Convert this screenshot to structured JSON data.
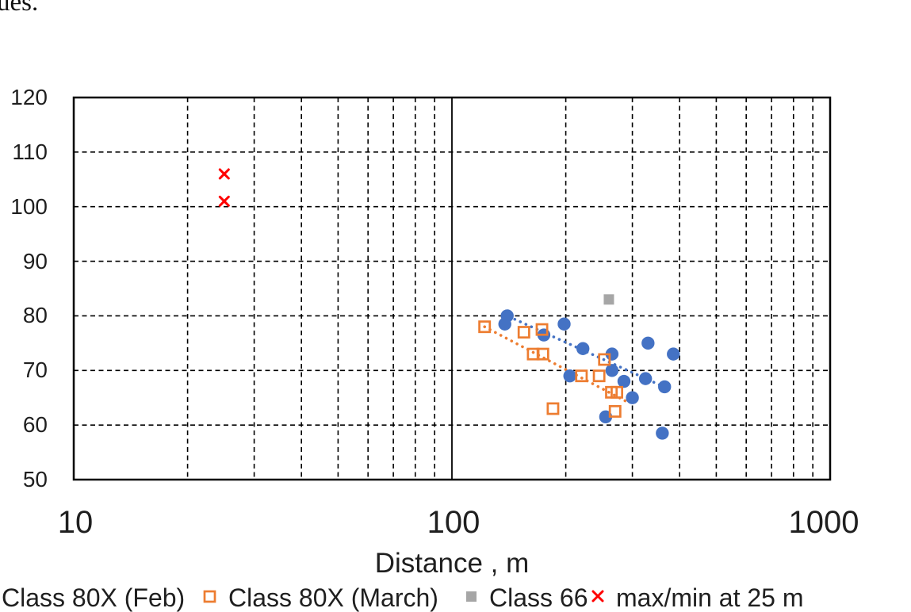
{
  "document_fragment": {
    "text": "ues."
  },
  "chart_data": {
    "type": "scatter",
    "title": "",
    "xlabel": "Distance , m",
    "ylabel": "",
    "x_scale": "log",
    "xlim": [
      10,
      1000
    ],
    "ylim": [
      50,
      120
    ],
    "x_ticks": [
      10,
      100,
      1000
    ],
    "y_ticks": [
      120,
      110,
      100,
      90,
      80,
      70,
      60,
      50
    ],
    "grid": "dashed",
    "legend_position": "bottom",
    "frame_color": "#000000",
    "series": [
      {
        "name": "Class 80X (Feb)",
        "marker": "filled-circle",
        "color": "#4472C4",
        "points": [
          [
            140,
            80
          ],
          [
            138,
            78.5
          ],
          [
            175,
            76.5
          ],
          [
            198,
            78.5
          ],
          [
            222,
            74
          ],
          [
            205,
            69
          ],
          [
            265,
            73
          ],
          [
            265,
            70
          ],
          [
            285,
            68
          ],
          [
            330,
            75
          ],
          [
            325,
            68.5
          ],
          [
            365,
            67
          ],
          [
            385,
            73
          ],
          [
            255,
            61.5
          ],
          [
            300,
            65
          ],
          [
            360,
            58.5
          ]
        ]
      },
      {
        "name": "Class 80X (March)",
        "marker": "open-square",
        "color": "#ED7D31",
        "points": [
          [
            122,
            78
          ],
          [
            155,
            77
          ],
          [
            173,
            77.5
          ],
          [
            164,
            73
          ],
          [
            174,
            73
          ],
          [
            220,
            69
          ],
          [
            245,
            69
          ],
          [
            253,
            72
          ],
          [
            264,
            66
          ],
          [
            273,
            66
          ],
          [
            185,
            63
          ],
          [
            270,
            62.5
          ]
        ]
      },
      {
        "name": "Class 66",
        "marker": "filled-square",
        "color": "#A6A6A6",
        "points": [
          [
            260,
            83
          ]
        ]
      },
      {
        "name": "max/min at 25 m",
        "marker": "x-cross",
        "color": "#FF0000",
        "points": [
          [
            25,
            106
          ],
          [
            25,
            101
          ]
        ]
      }
    ],
    "trendlines": [
      {
        "series": "Class 80X (Feb)",
        "color": "#4472C4",
        "from": [
          137,
          80.3
        ],
        "to": [
          377,
          66.5
        ]
      },
      {
        "series": "Class 80X (March)",
        "color": "#ED7D31",
        "from": [
          122,
          78.0
        ],
        "to": [
          295,
          64.0
        ]
      }
    ]
  }
}
